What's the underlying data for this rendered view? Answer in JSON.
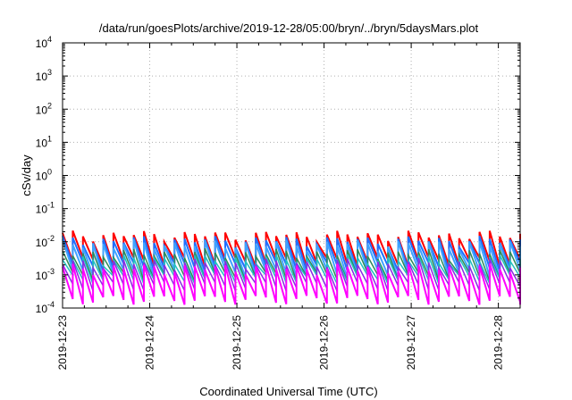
{
  "chart_data": {
    "type": "line",
    "title": "/data/run/goesPlots/archive/2019-12-28/05:00/bryn/../bryn/5daysMars.plot",
    "xlabel": "Coordinated Universal Time (UTC)",
    "ylabel": "cSv/day",
    "yscale": "log",
    "ylim": [
      0.0001,
      10000
    ],
    "xlim": [
      "2019-12-23",
      "2019-12-28 06:00"
    ],
    "x_ticks": [
      "2019-12-23",
      "2019-12-24",
      "2019-12-25",
      "2019-12-26",
      "2019-12-27",
      "2019-12-28"
    ],
    "y_ticks": [
      {
        "base": "10",
        "exp": "-4",
        "value": 0.0001
      },
      {
        "base": "10",
        "exp": "-3",
        "value": 0.001
      },
      {
        "base": "10",
        "exp": "-2",
        "value": 0.01
      },
      {
        "base": "10",
        "exp": "-1",
        "value": 0.1
      },
      {
        "base": "10",
        "exp": "0",
        "value": 1
      },
      {
        "base": "10",
        "exp": "1",
        "value": 10
      },
      {
        "base": "10",
        "exp": "2",
        "value": 100
      },
      {
        "base": "10",
        "exp": "3",
        "value": 1000
      },
      {
        "base": "10",
        "exp": "4",
        "value": 10000
      }
    ],
    "grid": true,
    "legend": "none",
    "sawtooth_period_hours": 2.8,
    "series": [
      {
        "color": "#ff0000",
        "peak": 0.016,
        "trough": 0.0025,
        "width": 2
      },
      {
        "color": "#1f6fff",
        "peak": 0.011,
        "trough": 0.0018,
        "width": 2
      },
      {
        "color": "#3fa3ff",
        "peak": 0.0085,
        "trough": 0.0011,
        "width": 2
      },
      {
        "color": "#2e8b57",
        "peak": 0.0045,
        "trough": 0.0009,
        "width": 1.5
      },
      {
        "color": "#20c0c0",
        "peak": 0.003,
        "trough": 0.00075,
        "width": 1.5
      },
      {
        "color": "#8a2be2",
        "peak": 0.0023,
        "trough": 0.00045,
        "width": 1.5
      },
      {
        "color": "#ff00ff",
        "peak": 0.0016,
        "trough": 0.00018,
        "width": 2
      }
    ]
  }
}
